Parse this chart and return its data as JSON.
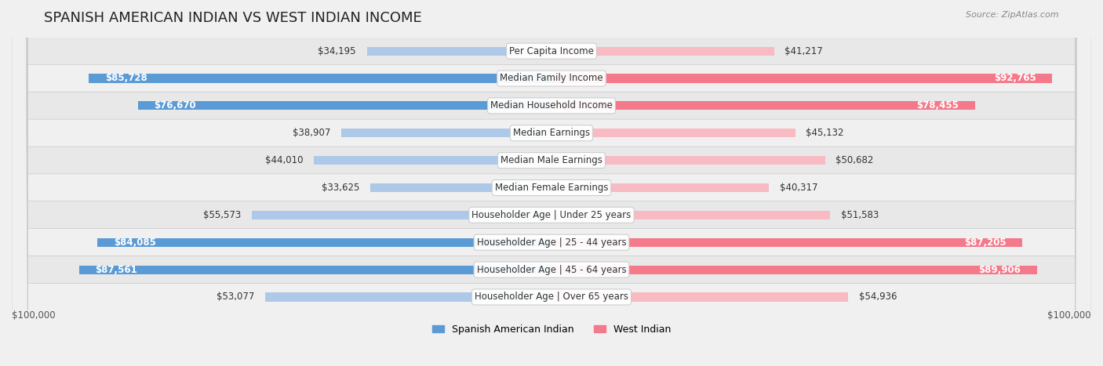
{
  "title": "SPANISH AMERICAN INDIAN VS WEST INDIAN INCOME",
  "source": "Source: ZipAtlas.com",
  "categories": [
    "Per Capita Income",
    "Median Family Income",
    "Median Household Income",
    "Median Earnings",
    "Median Male Earnings",
    "Median Female Earnings",
    "Householder Age | Under 25 years",
    "Householder Age | 25 - 44 years",
    "Householder Age | 45 - 64 years",
    "Householder Age | Over 65 years"
  ],
  "left_values": [
    34195,
    85728,
    76670,
    38907,
    44010,
    33625,
    55573,
    84085,
    87561,
    53077
  ],
  "right_values": [
    41217,
    92765,
    78455,
    45132,
    50682,
    40317,
    51583,
    87205,
    89906,
    54936
  ],
  "left_labels": [
    "$34,195",
    "$85,728",
    "$76,670",
    "$38,907",
    "$44,010",
    "$33,625",
    "$55,573",
    "$84,085",
    "$87,561",
    "$53,077"
  ],
  "right_labels": [
    "$41,217",
    "$92,765",
    "$78,455",
    "$45,132",
    "$50,682",
    "$40,317",
    "$51,583",
    "$87,205",
    "$89,906",
    "$54,936"
  ],
  "left_color_dark": "#5b9bd5",
  "left_color_light": "#aec8e8",
  "right_color_dark": "#f4798a",
  "right_color_light": "#f8bac3",
  "max_value": 100000,
  "bg_color": "#f0f0f0",
  "row_bg_color": "#e8e8e8",
  "row_bg_alt": "#f5f5f5",
  "legend_left": "Spanish American Indian",
  "legend_right": "West Indian",
  "title_fontsize": 13,
  "label_fontsize": 8.5,
  "category_fontsize": 8.5,
  "axis_label_left": "$100,000",
  "axis_label_right": "$100,000"
}
